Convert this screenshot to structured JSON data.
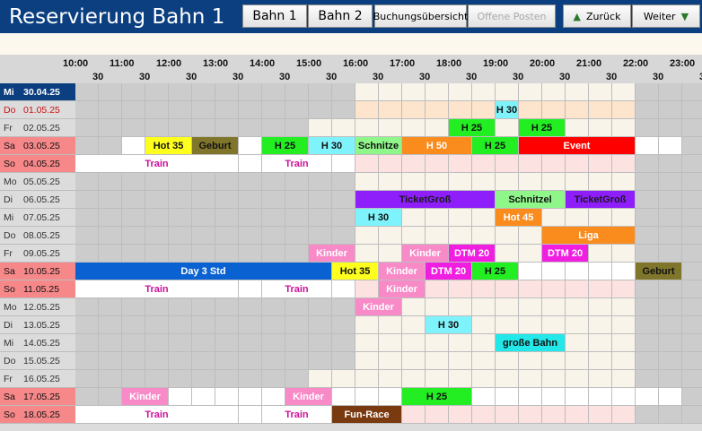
{
  "app": {
    "title": "Reservierung Bahn 1"
  },
  "toolbar": {
    "buttons": [
      {
        "label": "Bahn 1"
      },
      {
        "label": "Bahn 2"
      },
      {
        "label": "Buchungsübersicht"
      },
      {
        "label": "Offene Posten"
      },
      {
        "label": "Zurück",
        "icon": "arrow-up-icon"
      },
      {
        "label": "Weiter",
        "icon": "arrow-down-icon"
      }
    ]
  },
  "timeline": {
    "hours": [
      "10:00",
      "11:00",
      "12:00",
      "13:00",
      "14:00",
      "15:00",
      "16:00",
      "17:00",
      "18:00",
      "19:00",
      "20:00",
      "21:00",
      "22:00",
      "23:00"
    ],
    "half_label": "30"
  },
  "colors": {
    "closed": "#cccccc",
    "open_weekday": "#f9f4ea",
    "open_holiday": "#fde2e2",
    "holiday_open_evening": "#fde4cc",
    "label_weekday": "#d8d8d8",
    "label_weekend": "#f6888a",
    "label_selected": "#0b3f80",
    "white": "#ffffff"
  },
  "days": [
    {
      "weekday": "Mi",
      "date": "30.04.25",
      "type": "selected",
      "lbl_bg": "#0b3f80",
      "lbl_color": "#ffffff",
      "bold": true,
      "segments": [
        {
          "from": 10,
          "to": 16,
          "bg": "#cccccc"
        },
        {
          "from": 16,
          "to": 22,
          "bg": "#f9f4ea"
        },
        {
          "from": 22,
          "to": 23.5,
          "bg": "#cccccc"
        }
      ],
      "bookings": []
    },
    {
      "weekday": "Do",
      "date": "01.05.25",
      "type": "holiday",
      "lbl_bg": "#dcdcdc",
      "lbl_color": "#cc1111",
      "bold": false,
      "segments": [
        {
          "from": 10,
          "to": 16,
          "bg": "#cccccc"
        },
        {
          "from": 16,
          "to": 22,
          "bg": "#fde4cc"
        },
        {
          "from": 22,
          "to": 23.5,
          "bg": "#cccccc"
        }
      ],
      "bookings": [
        {
          "label": "H 30",
          "from": 19,
          "to": 19.5,
          "bg": "#7ff3fb",
          "color": "#111111"
        }
      ]
    },
    {
      "weekday": "Fr",
      "date": "02.05.25",
      "type": "weekday",
      "lbl_bg": "#dcdcdc",
      "lbl_color": "#333333",
      "bold": false,
      "segments": [
        {
          "from": 10,
          "to": 15,
          "bg": "#cccccc"
        },
        {
          "from": 15,
          "to": 22,
          "bg": "#f9f4ea"
        },
        {
          "from": 22,
          "to": 23.5,
          "bg": "#cccccc"
        }
      ],
      "bookings": [
        {
          "label": "H 25",
          "from": 18,
          "to": 19,
          "bg": "#22ee22",
          "color": "#111111"
        },
        {
          "label": "H 25",
          "from": 19.5,
          "to": 20.5,
          "bg": "#22ee22",
          "color": "#111111"
        }
      ]
    },
    {
      "weekday": "Sa",
      "date": "03.05.25",
      "type": "weekend",
      "lbl_bg": "#f6888a",
      "lbl_color": "#111111",
      "bold": false,
      "segments": [
        {
          "from": 10,
          "to": 11,
          "bg": "#cccccc"
        },
        {
          "from": 11,
          "to": 23,
          "bg": "#ffffff"
        },
        {
          "from": 23,
          "to": 23.5,
          "bg": "#cccccc"
        }
      ],
      "bookings": [
        {
          "label": "Hot 35",
          "from": 11.5,
          "to": 12.5,
          "bg": "#ffff1e",
          "color": "#111111"
        },
        {
          "label": "Geburt",
          "from": 12.5,
          "to": 13.5,
          "bg": "#80762b",
          "color": "#111111"
        },
        {
          "label": "H 25",
          "from": 14,
          "to": 15,
          "bg": "#22ee22",
          "color": "#111111"
        },
        {
          "label": "H 30",
          "from": 15,
          "to": 16,
          "bg": "#7ff3fb",
          "color": "#111111"
        },
        {
          "label": "Schnitze",
          "from": 16,
          "to": 17,
          "bg": "#8ff78a",
          "color": "#111111"
        },
        {
          "label": "H 50",
          "from": 17,
          "to": 18.5,
          "bg": "#fa8c1e",
          "color": "#ffffff"
        },
        {
          "label": "H 25",
          "from": 18.5,
          "to": 19.5,
          "bg": "#22ee22",
          "color": "#111111"
        },
        {
          "label": "Event",
          "from": 19.5,
          "to": 22,
          "bg": "#ff0000",
          "color": "#ffffff"
        }
      ]
    },
    {
      "weekday": "So",
      "date": "04.05.25",
      "type": "weekend",
      "lbl_bg": "#f6888a",
      "lbl_color": "#111111",
      "bold": false,
      "segments": [
        {
          "from": 10,
          "to": 16,
          "bg": "#ffffff"
        },
        {
          "from": 16,
          "to": 22,
          "bg": "#fde2e2"
        },
        {
          "from": 22,
          "to": 23.5,
          "bg": "#cccccc"
        }
      ],
      "bookings": [
        {
          "label": "Train",
          "from": 10,
          "to": 13.5,
          "bg": "#ffffff",
          "color": "#cc1199"
        },
        {
          "label": "Train",
          "from": 14,
          "to": 15.5,
          "bg": "#ffffff",
          "color": "#cc1199"
        }
      ]
    },
    {
      "weekday": "Mo",
      "date": "05.05.25",
      "type": "weekday",
      "lbl_bg": "#dcdcdc",
      "lbl_color": "#333333",
      "bold": false,
      "segments": [
        {
          "from": 10,
          "to": 16,
          "bg": "#cccccc"
        },
        {
          "from": 16,
          "to": 22,
          "bg": "#f9f4ea"
        },
        {
          "from": 22,
          "to": 23.5,
          "bg": "#cccccc"
        }
      ],
      "bookings": []
    },
    {
      "weekday": "Di",
      "date": "06.05.25",
      "type": "weekday",
      "lbl_bg": "#dcdcdc",
      "lbl_color": "#333333",
      "bold": false,
      "segments": [
        {
          "from": 10,
          "to": 16,
          "bg": "#cccccc"
        },
        {
          "from": 16,
          "to": 22,
          "bg": "#f9f4ea"
        },
        {
          "from": 22,
          "to": 23.5,
          "bg": "#cccccc"
        }
      ],
      "bookings": [
        {
          "label": "TicketGroß",
          "from": 16,
          "to": 19,
          "bg": "#8e1efa",
          "color": "#1a1a1a"
        },
        {
          "label": "Schnitzel",
          "from": 19,
          "to": 20.5,
          "bg": "#8ff78a",
          "color": "#111111"
        },
        {
          "label": "TicketGroß",
          "from": 20.5,
          "to": 22,
          "bg": "#8e1efa",
          "color": "#1a1a1a"
        }
      ]
    },
    {
      "weekday": "Mi",
      "date": "07.05.25",
      "type": "weekday",
      "lbl_bg": "#dcdcdc",
      "lbl_color": "#333333",
      "bold": false,
      "segments": [
        {
          "from": 10,
          "to": 16,
          "bg": "#cccccc"
        },
        {
          "from": 16,
          "to": 22,
          "bg": "#f9f4ea"
        },
        {
          "from": 22,
          "to": 23.5,
          "bg": "#cccccc"
        }
      ],
      "bookings": [
        {
          "label": "H 30",
          "from": 16,
          "to": 17,
          "bg": "#7ff3fb",
          "color": "#111111"
        },
        {
          "label": "Hot 45",
          "from": 19,
          "to": 20,
          "bg": "#fa8c1e",
          "color": "#ffffff"
        }
      ]
    },
    {
      "weekday": "Do",
      "date": "08.05.25",
      "type": "weekday",
      "lbl_bg": "#dcdcdc",
      "lbl_color": "#333333",
      "bold": false,
      "segments": [
        {
          "from": 10,
          "to": 16,
          "bg": "#cccccc"
        },
        {
          "from": 16,
          "to": 22,
          "bg": "#f9f4ea"
        },
        {
          "from": 22,
          "to": 23.5,
          "bg": "#cccccc"
        }
      ],
      "bookings": [
        {
          "label": "Liga",
          "from": 20,
          "to": 22,
          "bg": "#fa8c1e",
          "color": "#ffffff"
        }
      ]
    },
    {
      "weekday": "Fr",
      "date": "09.05.25",
      "type": "weekday",
      "lbl_bg": "#dcdcdc",
      "lbl_color": "#333333",
      "bold": false,
      "segments": [
        {
          "from": 10,
          "to": 15,
          "bg": "#cccccc"
        },
        {
          "from": 15,
          "to": 22,
          "bg": "#f9f4ea"
        },
        {
          "from": 22,
          "to": 23.5,
          "bg": "#cccccc"
        }
      ],
      "bookings": [
        {
          "label": "Kinder",
          "from": 15,
          "to": 16,
          "bg": "#f88ac8",
          "color": "#ffffff"
        },
        {
          "label": "Kinder",
          "from": 17,
          "to": 18,
          "bg": "#f88ac8",
          "color": "#ffffff"
        },
        {
          "label": "DTM 20",
          "from": 18,
          "to": 19,
          "bg": "#f01ee0",
          "color": "#ffffff"
        },
        {
          "label": "DTM 20",
          "from": 20,
          "to": 21,
          "bg": "#f01ee0",
          "color": "#ffffff"
        }
      ]
    },
    {
      "weekday": "Sa",
      "date": "10.05.25",
      "type": "weekend",
      "lbl_bg": "#f6888a",
      "lbl_color": "#111111",
      "bold": false,
      "segments": [
        {
          "from": 10,
          "to": 22,
          "bg": "#ffffff"
        },
        {
          "from": 22,
          "to": 23.5,
          "bg": "#cccccc"
        }
      ],
      "bookings": [
        {
          "label": "Day 3 Std",
          "from": 10,
          "to": 15.5,
          "bg": "#0a62d2",
          "color": "#ffffff"
        },
        {
          "label": "Hot 35",
          "from": 15.5,
          "to": 16.5,
          "bg": "#ffff1e",
          "color": "#111111"
        },
        {
          "label": "Kinder",
          "from": 16.5,
          "to": 17.5,
          "bg": "#f88ac8",
          "color": "#ffffff"
        },
        {
          "label": "DTM 20",
          "from": 17.5,
          "to": 18.5,
          "bg": "#f01ee0",
          "color": "#ffffff"
        },
        {
          "label": "H 25",
          "from": 18.5,
          "to": 19.5,
          "bg": "#22ee22",
          "color": "#111111"
        },
        {
          "label": "Geburt",
          "from": 22,
          "to": 23,
          "bg": "#80762b",
          "color": "#111111"
        }
      ]
    },
    {
      "weekday": "So",
      "date": "11.05.25",
      "type": "weekend",
      "lbl_bg": "#f6888a",
      "lbl_color": "#111111",
      "bold": false,
      "segments": [
        {
          "from": 10,
          "to": 16,
          "bg": "#ffffff"
        },
        {
          "from": 16,
          "to": 22,
          "bg": "#fde2e2"
        },
        {
          "from": 22,
          "to": 23.5,
          "bg": "#cccccc"
        }
      ],
      "bookings": [
        {
          "label": "Train",
          "from": 10,
          "to": 13.5,
          "bg": "#ffffff",
          "color": "#cc1199"
        },
        {
          "label": "Train",
          "from": 14,
          "to": 15.5,
          "bg": "#ffffff",
          "color": "#cc1199"
        },
        {
          "label": "Kinder",
          "from": 16.5,
          "to": 17.5,
          "bg": "#f88ac8",
          "color": "#ffffff"
        }
      ]
    },
    {
      "weekday": "Mo",
      "date": "12.05.25",
      "type": "weekday",
      "lbl_bg": "#dcdcdc",
      "lbl_color": "#333333",
      "bold": false,
      "segments": [
        {
          "from": 10,
          "to": 16,
          "bg": "#cccccc"
        },
        {
          "from": 16,
          "to": 22,
          "bg": "#f9f4ea"
        },
        {
          "from": 22,
          "to": 23.5,
          "bg": "#cccccc"
        }
      ],
      "bookings": [
        {
          "label": "Kinder",
          "from": 16,
          "to": 17,
          "bg": "#f88ac8",
          "color": "#ffffff"
        }
      ]
    },
    {
      "weekday": "Di",
      "date": "13.05.25",
      "type": "weekday",
      "lbl_bg": "#dcdcdc",
      "lbl_color": "#333333",
      "bold": false,
      "segments": [
        {
          "from": 10,
          "to": 16,
          "bg": "#cccccc"
        },
        {
          "from": 16,
          "to": 22,
          "bg": "#f9f4ea"
        },
        {
          "from": 22,
          "to": 23.5,
          "bg": "#cccccc"
        }
      ],
      "bookings": [
        {
          "label": "H 30",
          "from": 17.5,
          "to": 18.5,
          "bg": "#7ff3fb",
          "color": "#111111"
        }
      ]
    },
    {
      "weekday": "Mi",
      "date": "14.05.25",
      "type": "weekday",
      "lbl_bg": "#dcdcdc",
      "lbl_color": "#333333",
      "bold": false,
      "segments": [
        {
          "from": 10,
          "to": 16,
          "bg": "#cccccc"
        },
        {
          "from": 16,
          "to": 22,
          "bg": "#f9f4ea"
        },
        {
          "from": 22,
          "to": 23.5,
          "bg": "#cccccc"
        }
      ],
      "bookings": [
        {
          "label": "große Bahn",
          "from": 19,
          "to": 20.5,
          "bg": "#22e8ea",
          "color": "#111111"
        }
      ]
    },
    {
      "weekday": "Do",
      "date": "15.05.25",
      "type": "weekday",
      "lbl_bg": "#dcdcdc",
      "lbl_color": "#333333",
      "bold": false,
      "segments": [
        {
          "from": 10,
          "to": 16,
          "bg": "#cccccc"
        },
        {
          "from": 16,
          "to": 22,
          "bg": "#f9f4ea"
        },
        {
          "from": 22,
          "to": 23.5,
          "bg": "#cccccc"
        }
      ],
      "bookings": []
    },
    {
      "weekday": "Fr",
      "date": "16.05.25",
      "type": "weekday",
      "lbl_bg": "#dcdcdc",
      "lbl_color": "#333333",
      "bold": false,
      "segments": [
        {
          "from": 10,
          "to": 15,
          "bg": "#cccccc"
        },
        {
          "from": 15,
          "to": 22,
          "bg": "#f9f4ea"
        },
        {
          "from": 22,
          "to": 23.5,
          "bg": "#cccccc"
        }
      ],
      "bookings": []
    },
    {
      "weekday": "Sa",
      "date": "17.05.25",
      "type": "weekend",
      "lbl_bg": "#f6888a",
      "lbl_color": "#111111",
      "bold": false,
      "segments": [
        {
          "from": 10,
          "to": 11,
          "bg": "#cccccc"
        },
        {
          "from": 11,
          "to": 14.5,
          "bg": "#ffffff"
        },
        {
          "from": 14.5,
          "to": 23,
          "bg": "#ffffff"
        },
        {
          "from": 23,
          "to": 23.5,
          "bg": "#cccccc"
        }
      ],
      "bookings": [
        {
          "label": "Kinder",
          "from": 11,
          "to": 12,
          "bg": "#f88ac8",
          "color": "#ffffff"
        },
        {
          "label": "Kinder",
          "from": 14.5,
          "to": 15.5,
          "bg": "#f88ac8",
          "color": "#ffffff"
        },
        {
          "label": "H 25",
          "from": 17,
          "to": 18.5,
          "bg": "#22ee22",
          "color": "#111111"
        }
      ]
    },
    {
      "weekday": "So",
      "date": "18.05.25",
      "type": "weekend",
      "lbl_bg": "#f6888a",
      "lbl_color": "#111111",
      "bold": false,
      "segments": [
        {
          "from": 10,
          "to": 16,
          "bg": "#ffffff"
        },
        {
          "from": 16,
          "to": 22,
          "bg": "#fde2e2"
        },
        {
          "from": 22,
          "to": 23.5,
          "bg": "#cccccc"
        }
      ],
      "bookings": [
        {
          "label": "Train",
          "from": 10,
          "to": 13.5,
          "bg": "#ffffff",
          "color": "#cc1199"
        },
        {
          "label": "Train",
          "from": 14,
          "to": 15.5,
          "bg": "#ffffff",
          "color": "#cc1199"
        },
        {
          "label": "Fun-Race",
          "from": 15.5,
          "to": 17,
          "bg": "#7a3a10",
          "color": "#ffffff"
        }
      ]
    }
  ]
}
